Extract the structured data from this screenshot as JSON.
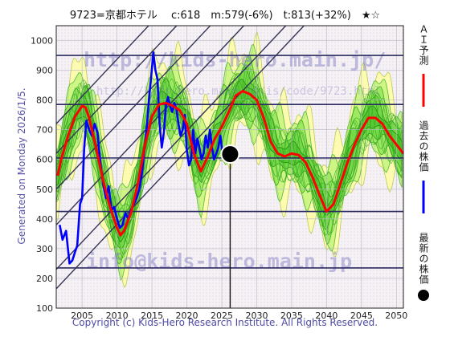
{
  "title": "9723=京都ホテル　 c:618　m:579(-6%)　t:813(+32%)　★☆",
  "generated": "Generated on Monday 2026/1/5.",
  "copyright": "Copyright (c) Kids-Hero Research Institute. All Rights Reserved.",
  "watermarks": {
    "url": "http://kids-hero.main.jp/",
    "url2": "http://kids-hero.main.jp/is/code/9723.html",
    "email": "info@kids-hero.main.jp"
  },
  "legend": {
    "ai": "ＡＩ予測",
    "past": "過去の株価",
    "latest": "最新の株価"
  },
  "colors": {
    "ai": "#ff0000",
    "past": "#0000ff",
    "latest": "#000000",
    "band_green": "#66dd44",
    "band_yellow": "#ffff99",
    "channel": "#333355"
  },
  "chart_data": {
    "type": "line",
    "xlabel": "",
    "ylabel": "",
    "xlim": [
      2001.3,
      2051
    ],
    "ylim": [
      100,
      1050
    ],
    "x_ticks": [
      2005,
      2010,
      2015,
      2020,
      2025,
      2030,
      2035,
      2040,
      2045,
      2050
    ],
    "y_ticks": [
      100,
      200,
      300,
      400,
      500,
      600,
      700,
      800,
      900,
      1000
    ],
    "horizontal_levels": [
      950,
      785,
      605,
      425,
      235
    ],
    "latest_point": {
      "x": 2026.2,
      "y": 618
    },
    "channel_lines": [
      {
        "x": [
          2001.3,
          2051
        ],
        "y": [
          165,
          1405
        ]
      },
      {
        "x": [
          2001.3,
          2051
        ],
        "y": [
          230,
          1470
        ]
      },
      {
        "x": [
          2001.3,
          2051
        ],
        "y": [
          380,
          1620
        ]
      },
      {
        "x": [
          2001.3,
          2051
        ],
        "y": [
          500,
          1740
        ]
      },
      {
        "x": [
          2001.3,
          2051
        ],
        "y": [
          620,
          1860
        ]
      },
      {
        "x": [
          2001.3,
          2051
        ],
        "y": [
          720,
          1960
        ]
      }
    ],
    "series": [
      {
        "name": "ＡＩ予測",
        "x": [
          2001.5,
          2002,
          2003,
          2004,
          2005,
          2005.5,
          2006,
          2007,
          2008,
          2009,
          2010,
          2010.5,
          2011,
          2012,
          2013,
          2014,
          2015,
          2016,
          2017,
          2018,
          2019,
          2020,
          2021,
          2022,
          2023,
          2024,
          2025,
          2026,
          2027,
          2028,
          2029,
          2030,
          2031,
          2032,
          2033,
          2034,
          2035,
          2036,
          2037,
          2038,
          2039,
          2040,
          2041,
          2042,
          2043,
          2044,
          2045,
          2046,
          2047,
          2048,
          2049,
          2050,
          2051
        ],
        "y": [
          545,
          600,
          680,
          745,
          780,
          775,
          740,
          640,
          530,
          440,
          370,
          345,
          360,
          420,
          520,
          650,
          745,
          785,
          790,
          780,
          765,
          720,
          620,
          560,
          610,
          670,
          710,
          760,
          815,
          830,
          820,
          800,
          740,
          660,
          620,
          610,
          620,
          615,
          590,
          540,
          480,
          425,
          450,
          520,
          590,
          650,
          700,
          740,
          740,
          720,
          680,
          650,
          620
        ]
      },
      {
        "name": "過去の株価",
        "x": [
          2001.8,
          2002.2,
          2002.7,
          2003.2,
          2003.6,
          2004.0,
          2004.3,
          2004.7,
          2005.0,
          2005.3,
          2005.6,
          2006.0,
          2006.4,
          2006.8,
          2007.2,
          2007.6,
          2008.0,
          2008.4,
          2008.8,
          2009.2,
          2009.6,
          2010.0,
          2010.4,
          2010.8,
          2011.2,
          2011.6,
          2012.0,
          2012.4,
          2012.8,
          2013.2,
          2013.6,
          2014.0,
          2014.3,
          2014.6,
          2014.9,
          2015.2,
          2015.5,
          2015.8,
          2016.1,
          2016.4,
          2016.7,
          2017.0,
          2017.3,
          2017.6,
          2017.9,
          2018.2,
          2018.5,
          2018.8,
          2019.1,
          2019.4,
          2019.7,
          2020.0,
          2020.3,
          2020.6,
          2020.9,
          2021.2,
          2021.5,
          2021.8,
          2022.1,
          2022.4,
          2022.7,
          2023.0,
          2023.3,
          2023.6,
          2023.9,
          2024.2,
          2024.5,
          2024.8,
          2025.1,
          2025.4,
          2025.7,
          2026.0
        ],
        "y": [
          380,
          330,
          360,
          250,
          260,
          290,
          310,
          450,
          470,
          640,
          730,
          700,
          680,
          720,
          690,
          590,
          520,
          470,
          510,
          430,
          440,
          400,
          370,
          380,
          420,
          400,
          430,
          450,
          470,
          500,
          560,
          650,
          720,
          810,
          880,
          960,
          900,
          870,
          720,
          640,
          690,
          780,
          810,
          780,
          760,
          790,
          770,
          720,
          680,
          700,
          750,
          630,
          580,
          600,
          700,
          620,
          670,
          640,
          600,
          620,
          680,
          640,
          700,
          640,
          600,
          620,
          640,
          680,
          620,
          640,
          620,
          618
        ]
      }
    ]
  }
}
